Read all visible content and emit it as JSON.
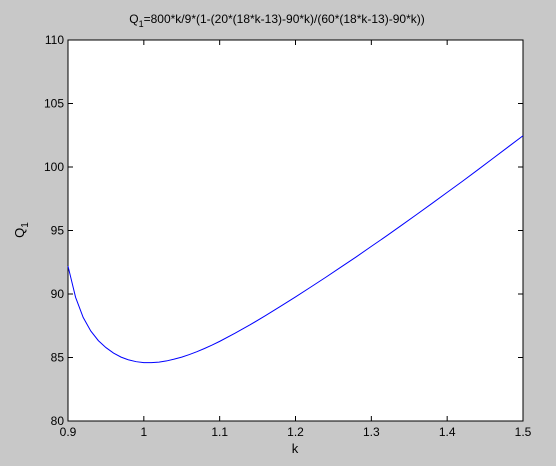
{
  "chart_data": {
    "type": "line",
    "title_main": "Q",
    "title_sub": "1",
    "title_rest": "=800*k/9*(1-(20*(18*k-13)-90*k)/(60*(18*k-13)-90*k))",
    "xlabel": "k",
    "ylabel_main": "Q",
    "ylabel_sub": "1",
    "xlim": [
      0.9,
      1.5
    ],
    "ylim": [
      80,
      110
    ],
    "xticks": [
      0.9,
      1,
      1.1,
      1.2,
      1.3,
      1.4,
      1.5
    ],
    "yticks": [
      80,
      85,
      90,
      95,
      100,
      105,
      110
    ],
    "xtick_labels": [
      "0.9",
      "1",
      "1.1",
      "1.2",
      "1.3",
      "1.4",
      "1.5"
    ],
    "ytick_labels": [
      "80",
      "85",
      "90",
      "95",
      "100",
      "105",
      "110"
    ],
    "grid": false,
    "series": [
      {
        "color": "#0000ff",
        "x": [
          0.9,
          0.91,
          0.92,
          0.93,
          0.94,
          0.95,
          0.96,
          0.97,
          0.98,
          0.99,
          1.0,
          1.01,
          1.02,
          1.03,
          1.04,
          1.05,
          1.06,
          1.07,
          1.08,
          1.09,
          1.1,
          1.12,
          1.14,
          1.16,
          1.18,
          1.2,
          1.22,
          1.24,
          1.26,
          1.28,
          1.3,
          1.32,
          1.34,
          1.36,
          1.38,
          1.4,
          1.42,
          1.44,
          1.46,
          1.48,
          1.5
        ],
        "y": [
          92.2,
          89.74,
          88.16,
          87.09,
          86.33,
          85.78,
          85.35,
          85.03,
          84.81,
          84.67,
          84.6,
          84.6,
          84.64,
          84.73,
          84.87,
          85.03,
          85.23,
          85.46,
          85.71,
          85.98,
          86.27,
          86.9,
          87.57,
          88.28,
          89.02,
          89.77,
          90.54,
          91.32,
          92.12,
          92.92,
          93.75,
          94.57,
          95.42,
          96.27,
          97.13,
          98.0,
          98.87,
          99.76,
          100.66,
          101.56,
          102.46
        ]
      }
    ]
  }
}
